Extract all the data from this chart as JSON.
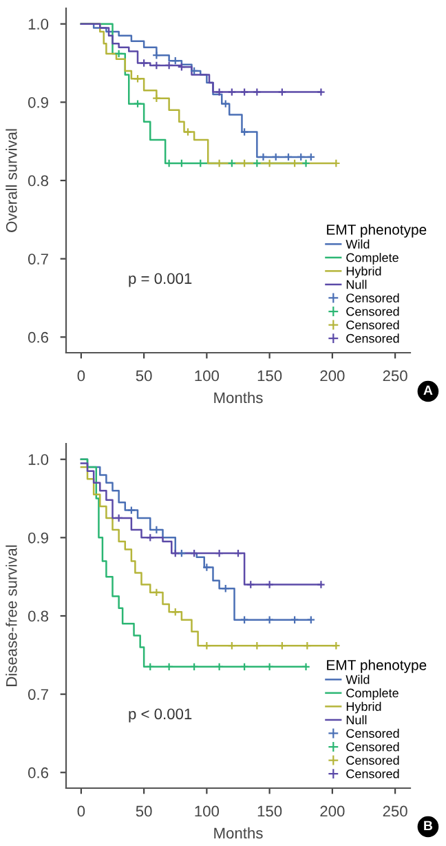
{
  "chart_data": [
    {
      "type": "step",
      "xlabel": "Months",
      "ylabel": "Overall survival",
      "legend_title": "EMT phenotype",
      "legend": "bottom right",
      "grid": false,
      "xlim": [
        -12,
        262
      ],
      "ylim": [
        0.58,
        1.02
      ],
      "xticks": [
        0,
        50,
        100,
        150,
        200,
        250
      ],
      "yticks": [
        {
          "value": 0.6,
          "label": "0.6"
        },
        {
          "value": 0.7,
          "label": "0.7"
        },
        {
          "value": 0.8,
          "label": "0.8"
        },
        {
          "value": 0.9,
          "label": "0.9"
        },
        {
          "value": 1.0,
          "label": "1.0"
        }
      ],
      "annotations": [
        "p = 0.001",
        "A"
      ],
      "series": [
        {
          "name": "Wild",
          "color": "#4a6fb5",
          "x": [
            0,
            10,
            20,
            30,
            40,
            50,
            60,
            70,
            80,
            88,
            95,
            100,
            105,
            112,
            118,
            128,
            140,
            183
          ],
          "values": [
            1.0,
            0.995,
            0.99,
            0.985,
            0.978,
            0.97,
            0.96,
            0.953,
            0.948,
            0.94,
            0.935,
            0.925,
            0.91,
            0.898,
            0.884,
            0.862,
            0.83,
            0.83
          ]
        },
        {
          "name": "Complete",
          "color": "#2bb673",
          "x": [
            0,
            25,
            35,
            38,
            50,
            55,
            67,
            179
          ],
          "values": [
            1.0,
            0.962,
            0.935,
            0.898,
            0.875,
            0.852,
            0.822,
            0.822
          ]
        },
        {
          "name": "Hybrid",
          "color": "#b5b53a",
          "x": [
            0,
            15,
            18,
            20,
            28,
            35,
            40,
            50,
            60,
            70,
            78,
            82,
            90,
            101,
            203
          ],
          "values": [
            1.0,
            0.99,
            0.975,
            0.962,
            0.955,
            0.94,
            0.93,
            0.915,
            0.905,
            0.89,
            0.875,
            0.862,
            0.852,
            0.822,
            0.822
          ]
        },
        {
          "name": "Null",
          "color": "#5b4aa8",
          "x": [
            0,
            15,
            22,
            25,
            30,
            38,
            45,
            55,
            80,
            88,
            102,
            105,
            191
          ],
          "values": [
            1.0,
            0.995,
            0.985,
            0.975,
            0.97,
            0.965,
            0.95,
            0.947,
            0.945,
            0.935,
            0.925,
            0.913,
            0.913
          ]
        },
        {
          "name": "Censored",
          "type": "scatter",
          "marker": "cross",
          "color": "#4a6fb5",
          "x": [
            60,
            75,
            90,
            115,
            130,
            145,
            155,
            165,
            175,
            183
          ],
          "values": [
            0.96,
            0.953,
            0.94,
            0.898,
            0.862,
            0.83,
            0.83,
            0.83,
            0.83,
            0.83
          ]
        },
        {
          "name": "Censored",
          "type": "scatter",
          "marker": "cross",
          "color": "#2bb673",
          "x": [
            30,
            45,
            70,
            80,
            95,
            120,
            140,
            179
          ],
          "values": [
            0.962,
            0.898,
            0.822,
            0.822,
            0.822,
            0.822,
            0.822,
            0.822
          ]
        },
        {
          "name": "Censored",
          "type": "scatter",
          "marker": "cross",
          "color": "#b5b53a",
          "x": [
            45,
            60,
            85,
            110,
            130,
            150,
            170,
            203
          ],
          "values": [
            0.93,
            0.905,
            0.862,
            0.822,
            0.822,
            0.822,
            0.822,
            0.822
          ]
        },
        {
          "name": "Censored",
          "type": "scatter",
          "marker": "cross",
          "color": "#5b4aa8",
          "x": [
            50,
            60,
            70,
            80,
            110,
            120,
            130,
            140,
            160,
            191
          ],
          "values": [
            0.95,
            0.947,
            0.947,
            0.945,
            0.913,
            0.913,
            0.913,
            0.913,
            0.913,
            0.913
          ]
        }
      ]
    },
    {
      "type": "step",
      "xlabel": "Months",
      "ylabel": "Disease-free survival",
      "legend_title": "EMT phenotype",
      "legend": "bottom right",
      "grid": false,
      "xlim": [
        -12,
        262
      ],
      "ylim": [
        0.58,
        1.02
      ],
      "xticks": [
        0,
        50,
        100,
        150,
        200,
        250
      ],
      "yticks": [
        {
          "value": 0.6,
          "label": "0.6"
        },
        {
          "value": 0.7,
          "label": "0.7"
        },
        {
          "value": 0.8,
          "label": "0.8"
        },
        {
          "value": 0.9,
          "label": "0.9"
        },
        {
          "value": 1.0,
          "label": "1.0"
        }
      ],
      "annotations": [
        "p < 0.001",
        "B"
      ],
      "series": [
        {
          "name": "Wild",
          "color": "#4a6fb5",
          "x": [
            0,
            5,
            15,
            20,
            25,
            30,
            35,
            45,
            55,
            65,
            75,
            92,
            98,
            105,
            110,
            122,
            183
          ],
          "values": [
            1.0,
            0.99,
            0.98,
            0.97,
            0.96,
            0.945,
            0.935,
            0.925,
            0.91,
            0.9,
            0.88,
            0.875,
            0.862,
            0.845,
            0.835,
            0.795,
            0.795
          ]
        },
        {
          "name": "Complete",
          "color": "#2bb673",
          "x": [
            0,
            5,
            12,
            14,
            17,
            20,
            25,
            30,
            33,
            42,
            47,
            50,
            179
          ],
          "values": [
            1.0,
            0.99,
            0.95,
            0.9,
            0.87,
            0.85,
            0.825,
            0.81,
            0.79,
            0.775,
            0.76,
            0.735,
            0.735
          ]
        },
        {
          "name": "Hybrid",
          "color": "#b5b53a",
          "x": [
            0,
            5,
            10,
            15,
            20,
            25,
            30,
            35,
            40,
            43,
            48,
            55,
            65,
            70,
            80,
            88,
            93,
            203
          ],
          "values": [
            0.99,
            0.975,
            0.955,
            0.94,
            0.925,
            0.91,
            0.895,
            0.885,
            0.87,
            0.855,
            0.84,
            0.83,
            0.815,
            0.805,
            0.795,
            0.78,
            0.762,
            0.762
          ]
        },
        {
          "name": "Null",
          "color": "#5b4aa8",
          "x": [
            0,
            5,
            10,
            15,
            20,
            25,
            40,
            48,
            65,
            72,
            130,
            191
          ],
          "values": [
            0.995,
            0.985,
            0.97,
            0.96,
            0.948,
            0.925,
            0.91,
            0.9,
            0.895,
            0.88,
            0.84,
            0.84
          ]
        },
        {
          "name": "Censored",
          "type": "scatter",
          "marker": "cross",
          "color": "#4a6fb5",
          "x": [
            40,
            60,
            80,
            100,
            115,
            130,
            150,
            170,
            183
          ],
          "values": [
            0.935,
            0.91,
            0.88,
            0.862,
            0.835,
            0.795,
            0.795,
            0.795,
            0.795
          ]
        },
        {
          "name": "Censored",
          "type": "scatter",
          "marker": "cross",
          "color": "#2bb673",
          "x": [
            55,
            70,
            90,
            110,
            130,
            150,
            179
          ],
          "values": [
            0.735,
            0.735,
            0.735,
            0.735,
            0.735,
            0.735,
            0.735
          ]
        },
        {
          "name": "Censored",
          "type": "scatter",
          "marker": "cross",
          "color": "#b5b53a",
          "x": [
            60,
            75,
            100,
            120,
            140,
            160,
            180,
            203
          ],
          "values": [
            0.83,
            0.805,
            0.762,
            0.762,
            0.762,
            0.762,
            0.762,
            0.762
          ]
        },
        {
          "name": "Censored",
          "type": "scatter",
          "marker": "cross",
          "color": "#5b4aa8",
          "x": [
            30,
            55,
            75,
            90,
            110,
            125,
            135,
            150,
            191
          ],
          "values": [
            0.925,
            0.9,
            0.88,
            0.88,
            0.88,
            0.88,
            0.84,
            0.84,
            0.84
          ]
        }
      ]
    }
  ]
}
